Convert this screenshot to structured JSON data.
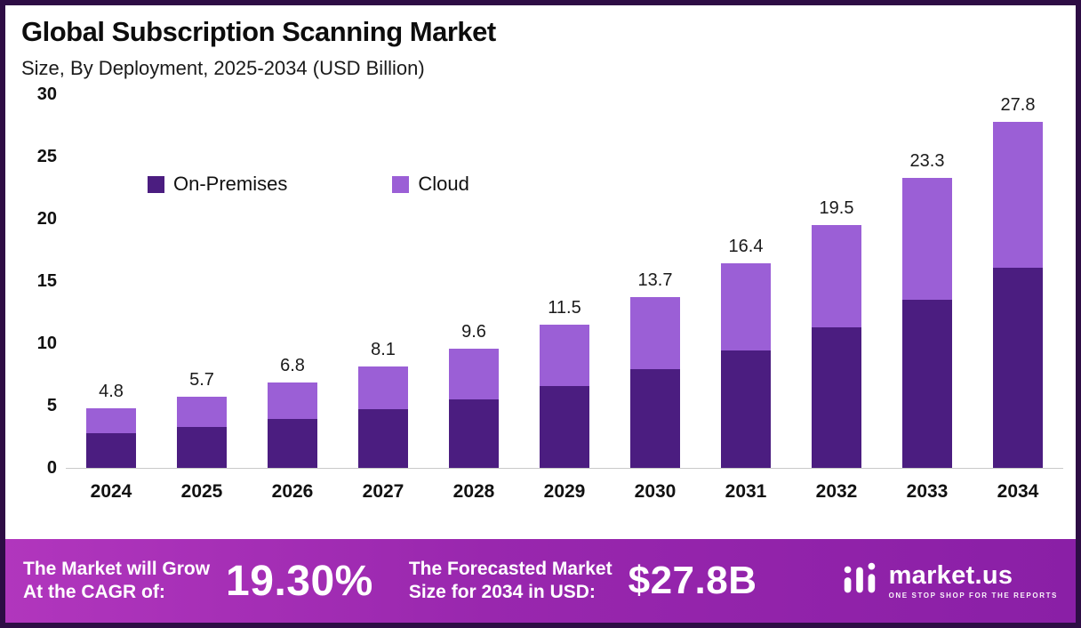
{
  "header": {
    "title": "Global Subscription Scanning Market",
    "subtitle": "Size, By Deployment, 2025-2034 (USD Billion)"
  },
  "chart_data": {
    "type": "bar",
    "stacked": true,
    "title": "Global Subscription Scanning Market Size, By Deployment, 2025-2034 (USD Billion)",
    "categories": [
      "2024",
      "2025",
      "2026",
      "2027",
      "2028",
      "2029",
      "2030",
      "2031",
      "2032",
      "2033",
      "2034"
    ],
    "series": [
      {
        "name": "On-Premises",
        "color": "#4b1d80",
        "values": [
          2.8,
          3.3,
          3.9,
          4.7,
          5.5,
          6.6,
          7.9,
          9.4,
          11.3,
          13.5,
          16.1
        ]
      },
      {
        "name": "Cloud",
        "color": "#9b5fd6",
        "values": [
          2.0,
          2.4,
          2.9,
          3.4,
          4.1,
          4.9,
          5.8,
          7.0,
          8.2,
          9.8,
          11.7
        ]
      }
    ],
    "totals": [
      4.8,
      5.7,
      6.8,
      8.1,
      9.6,
      11.5,
      13.7,
      16.4,
      19.5,
      23.3,
      27.8
    ],
    "total_labels": [
      "4.8",
      "5.7",
      "6.8",
      "8.1",
      "9.6",
      "11.5",
      "13.7",
      "16.4",
      "19.5",
      "23.3",
      "27.8"
    ],
    "y_ticks": [
      "30",
      "25",
      "20",
      "15",
      "10",
      "5",
      "0"
    ],
    "ylim": [
      0,
      30
    ],
    "grid": false,
    "legend_position": "inside-top-left",
    "xlabel": "",
    "ylabel": ""
  },
  "banner": {
    "cagr_label_l1": "The Market will Grow",
    "cagr_label_l2": "At the CAGR of:",
    "cagr_value": "19.30%",
    "forecast_label_l1": "The Forecasted Market",
    "forecast_label_l2": "Size for 2034 in USD:",
    "forecast_value": "$27.8B",
    "brand": "market.us",
    "brand_tagline": "ONE STOP SHOP FOR THE REPORTS"
  },
  "colors": {
    "frame_border": "#2e0d45",
    "on_premises": "#4b1d80",
    "cloud": "#9b5fd6",
    "banner_start": "#b136bd",
    "banner_end": "#8a1fa6"
  }
}
